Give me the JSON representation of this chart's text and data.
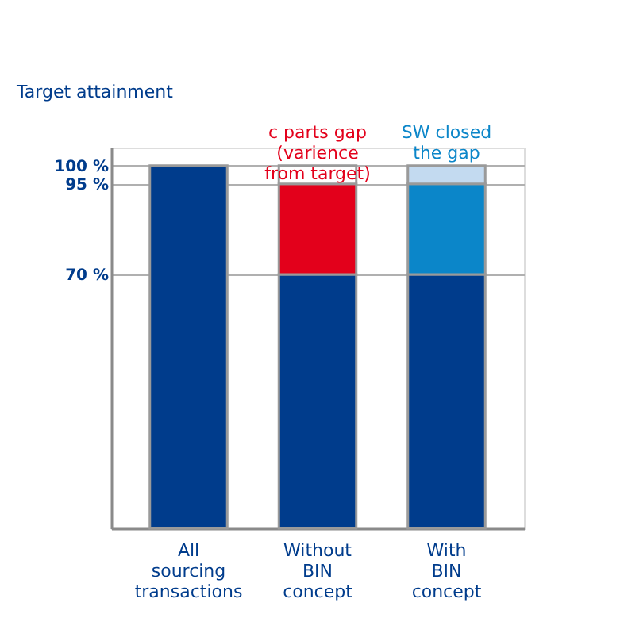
{
  "chart_data": {
    "type": "bar",
    "stacked": true,
    "ylabel": "Target attainment",
    "categories": [
      "All\nsourcing\ntransactions",
      "Without\nBIN\nconcept",
      "With\nBIN\nconcept"
    ],
    "series": [
      {
        "color": "#003c8c",
        "values": [
          100,
          70,
          70
        ]
      },
      {
        "color": "#e3001b",
        "values": [
          null,
          25,
          null
        ]
      },
      {
        "color": "#0b86c9",
        "values": [
          null,
          null,
          25
        ]
      },
      {
        "color": "#ffffff",
        "values": [
          null,
          5,
          null
        ]
      },
      {
        "color": "#c3daf0",
        "values": [
          null,
          null,
          5
        ]
      }
    ],
    "ylim": [
      0,
      105
    ],
    "yticks": [
      {
        "value": 70,
        "label": "70 %"
      },
      {
        "value": 95,
        "label": "95 %"
      },
      {
        "value": 100,
        "label": "100 %"
      }
    ],
    "grid": "y",
    "legend": false,
    "annotations": [
      "c parts gap\n(varience\nfrom target)",
      "SW closed\nthe gap"
    ]
  }
}
